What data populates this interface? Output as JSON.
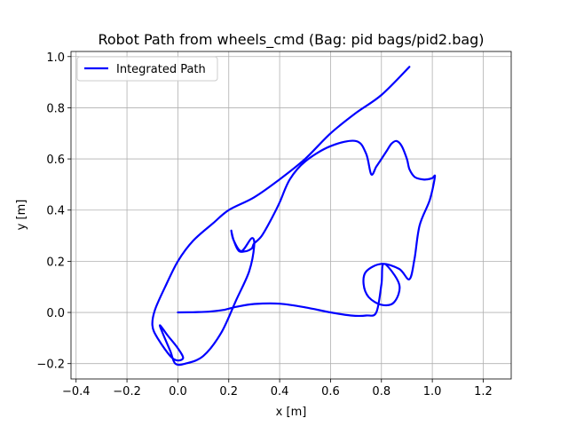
{
  "chart_data": {
    "type": "line",
    "title": "Robot Path from wheels_cmd (Bag: pid bags/pid2.bag)",
    "xlabel": "x [m]",
    "ylabel": "y [m]",
    "xlim": [
      -0.42,
      1.31
    ],
    "ylim": [
      -0.26,
      1.02
    ],
    "xticks": [
      -0.4,
      -0.2,
      0.0,
      0.2,
      0.4,
      0.6,
      0.8,
      1.0,
      1.2
    ],
    "yticks": [
      -0.2,
      0.0,
      0.2,
      0.4,
      0.6,
      0.8,
      1.0
    ],
    "xtick_labels": [
      "−0.4",
      "−0.2",
      "0.0",
      "0.2",
      "0.4",
      "0.6",
      "0.8",
      "1.0",
      "1.2"
    ],
    "ytick_labels": [
      "−0.2",
      "0.0",
      "0.2",
      "0.4",
      "0.6",
      "0.8",
      "1.0"
    ],
    "grid": true,
    "legend_position": "upper-left",
    "series": [
      {
        "name": "Integrated Path",
        "color": "#0000ff",
        "x": [
          0.0,
          0.06,
          0.12,
          0.18,
          0.23,
          0.3,
          0.4,
          0.5,
          0.6,
          0.68,
          0.74,
          0.78,
          0.8,
          0.81,
          0.87,
          0.85,
          0.8,
          0.75,
          0.73,
          0.74,
          0.8,
          0.87,
          0.91,
          0.93,
          0.95,
          0.99,
          1.01,
          1.0,
          0.98,
          0.96,
          0.93,
          0.91,
          0.9,
          0.88,
          0.86,
          0.84,
          0.82,
          0.8,
          0.78,
          0.76,
          0.74,
          0.7,
          0.6,
          0.5,
          0.44,
          0.4,
          0.37,
          0.33,
          0.3,
          0.295,
          0.29,
          0.27,
          0.24,
          0.22,
          0.21,
          0.22,
          0.25,
          0.29,
          0.3,
          0.28,
          0.23,
          0.17,
          0.1,
          0.03,
          -0.01,
          -0.03,
          -0.06,
          -0.07,
          -0.04,
          0.0,
          0.02,
          -0.02,
          -0.08,
          -0.1,
          -0.09,
          -0.05,
          0.0,
          0.06,
          0.14,
          0.2,
          0.3,
          0.4,
          0.5,
          0.6,
          0.7,
          0.8,
          0.91
        ],
        "y": [
          0.0,
          0.001,
          0.003,
          0.01,
          0.022,
          0.033,
          0.034,
          0.02,
          0.0,
          -0.012,
          -0.012,
          0.0,
          0.11,
          0.19,
          0.11,
          0.04,
          0.03,
          0.06,
          0.11,
          0.16,
          0.19,
          0.17,
          0.13,
          0.21,
          0.34,
          0.44,
          0.53,
          0.525,
          0.52,
          0.52,
          0.53,
          0.56,
          0.6,
          0.65,
          0.67,
          0.66,
          0.63,
          0.6,
          0.57,
          0.54,
          0.62,
          0.67,
          0.65,
          0.59,
          0.52,
          0.43,
          0.37,
          0.3,
          0.27,
          0.26,
          0.25,
          0.24,
          0.24,
          0.28,
          0.32,
          0.28,
          0.24,
          0.29,
          0.26,
          0.16,
          0.05,
          -0.08,
          -0.17,
          -0.2,
          -0.2,
          -0.15,
          -0.08,
          -0.05,
          -0.09,
          -0.14,
          -0.18,
          -0.18,
          -0.1,
          -0.05,
          0.01,
          0.1,
          0.2,
          0.28,
          0.35,
          0.4,
          0.45,
          0.52,
          0.6,
          0.7,
          0.78,
          0.85,
          0.96
        ]
      }
    ]
  }
}
